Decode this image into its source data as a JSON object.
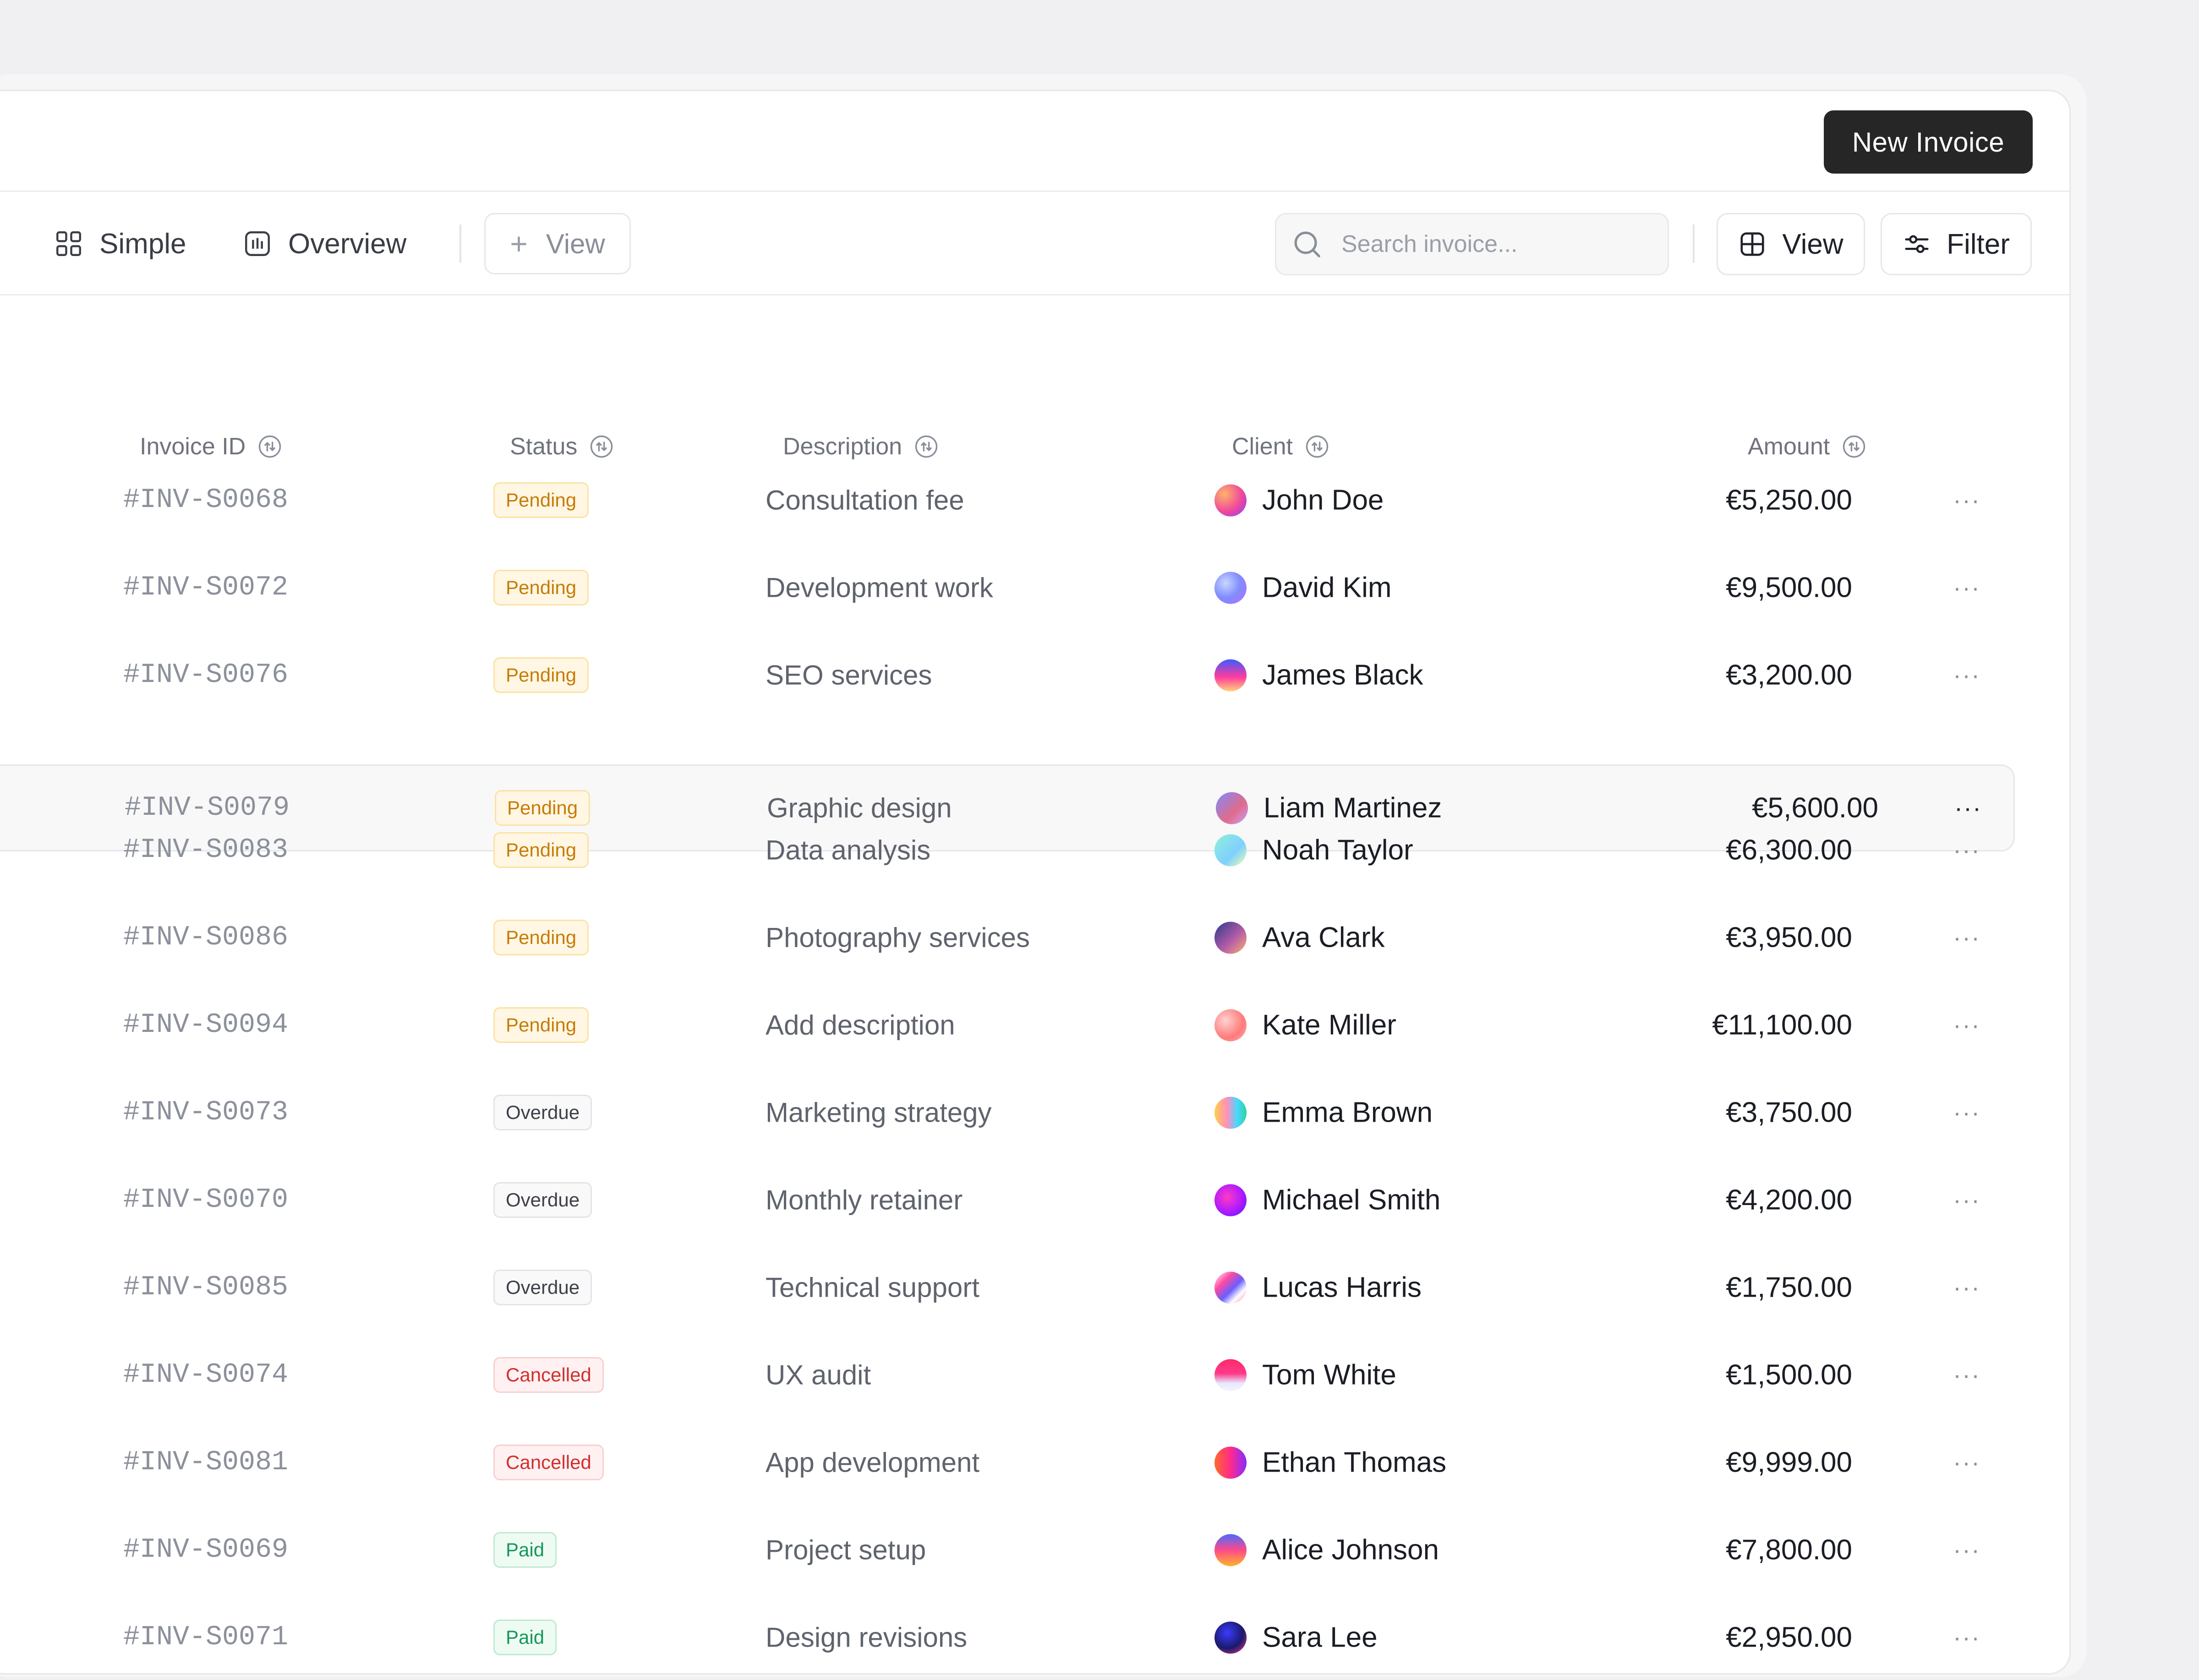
{
  "header": {
    "new_invoice_label": "New Invoice"
  },
  "tabs": [
    {
      "label": "Simple",
      "icon": "grid-icon"
    },
    {
      "label": "Overview",
      "icon": "chart-icon"
    }
  ],
  "add_view_label": "View",
  "search": {
    "placeholder": "Search invoice..."
  },
  "toolbar": {
    "view_label": "View",
    "filter_label": "Filter"
  },
  "columns": {
    "invoice_id": "Invoice ID",
    "status": "Status",
    "description": "Description",
    "client": "Client",
    "amount": "Amount"
  },
  "rows": [
    {
      "id": "#INV-S0068",
      "status": "Pending",
      "desc": "Consultation fee",
      "client": "John Doe",
      "amount": "€5,250.00"
    },
    {
      "id": "#INV-S0072",
      "status": "Pending",
      "desc": "Development work",
      "client": "David Kim",
      "amount": "€9,500.00"
    },
    {
      "id": "#INV-S0076",
      "status": "Pending",
      "desc": "SEO services",
      "client": "James Black",
      "amount": "€3,200.00"
    },
    {
      "id": "#INV-S0079",
      "status": "Pending",
      "desc": "Graphic design",
      "client": "Liam Martinez",
      "amount": "€5,600.00"
    },
    {
      "id": "#INV-S0083",
      "status": "Pending",
      "desc": "Data analysis",
      "client": "Noah Taylor",
      "amount": "€6,300.00"
    },
    {
      "id": "#INV-S0086",
      "status": "Pending",
      "desc": "Photography services",
      "client": "Ava Clark",
      "amount": "€3,950.00"
    },
    {
      "id": "#INV-S0094",
      "status": "Pending",
      "desc": "Add description",
      "client": "Kate Miller",
      "amount": "€11,100.00"
    },
    {
      "id": "#INV-S0073",
      "status": "Overdue",
      "desc": "Marketing strategy",
      "client": "Emma Brown",
      "amount": "€3,750.00"
    },
    {
      "id": "#INV-S0070",
      "status": "Overdue",
      "desc": "Monthly retainer",
      "client": "Michael Smith",
      "amount": "€4,200.00"
    },
    {
      "id": "#INV-S0085",
      "status": "Overdue",
      "desc": "Technical support",
      "client": "Lucas Harris",
      "amount": "€1,750.00"
    },
    {
      "id": "#INV-S0074",
      "status": "Cancelled",
      "desc": "UX audit",
      "client": "Tom White",
      "amount": "€1,500.00"
    },
    {
      "id": "#INV-S0081",
      "status": "Cancelled",
      "desc": "App development",
      "client": "Ethan Thomas",
      "amount": "€9,999.00"
    },
    {
      "id": "#INV-S0069",
      "status": "Paid",
      "desc": "Project setup",
      "client": "Alice Johnson",
      "amount": "€7,800.00"
    },
    {
      "id": "#INV-S0071",
      "status": "Paid",
      "desc": "Design revisions",
      "client": "Sara Lee",
      "amount": "€2,950.00"
    }
  ],
  "more_label": "···",
  "colors": {
    "pending": "#c77b07",
    "overdue": "#3d4049",
    "cancelled": "#d22f2f",
    "paid": "#16975a",
    "primary_button": "#262626"
  }
}
